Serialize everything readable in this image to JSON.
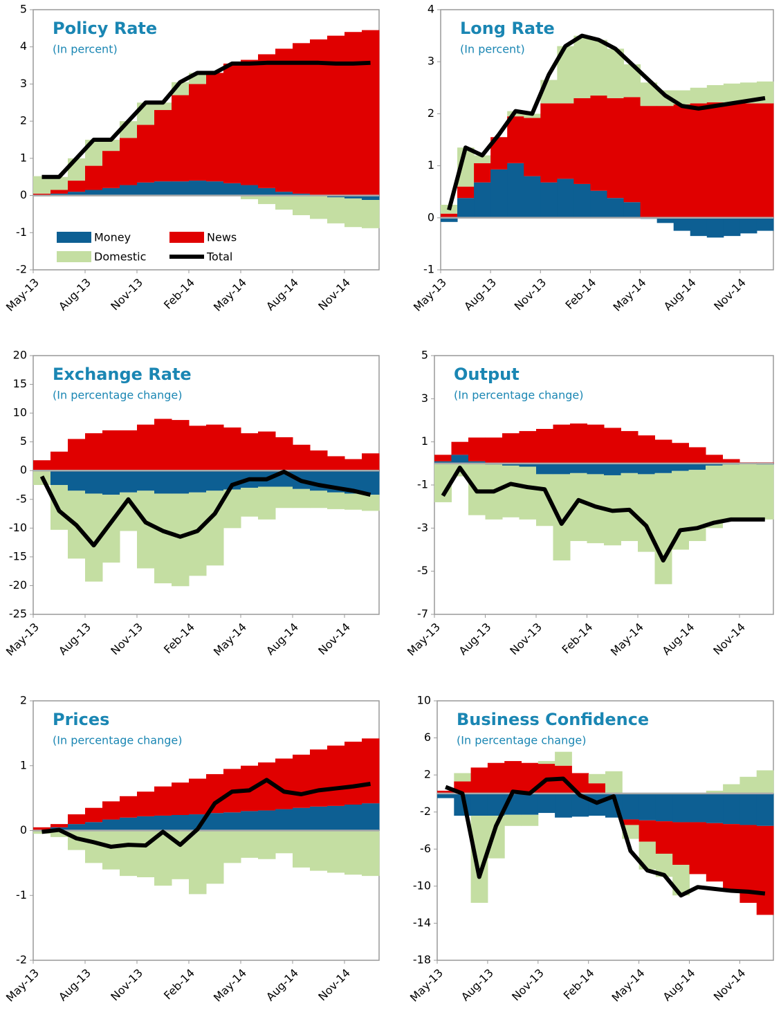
{
  "chart_data": [
    {
      "type": "stacked_bar",
      "title": "Policy Rate",
      "subtitle": "(In percent)",
      "categories": [
        "May-13",
        null,
        null,
        "Aug-13",
        null,
        null,
        "Nov-13",
        null,
        null,
        "Feb-14",
        null,
        null,
        "May-14",
        null,
        null,
        "Aug-14",
        null,
        null,
        "Nov-14",
        null
      ],
      "ylim": [
        -2,
        5
      ],
      "yticks": [
        -2,
        -1,
        0,
        1,
        2,
        3,
        4,
        5
      ],
      "legend": "lower left",
      "series": [
        {
          "name": "Money",
          "color": "#0d5f93",
          "values": [
            -0.02,
            0.05,
            0.1,
            0.15,
            0.2,
            0.28,
            0.35,
            0.38,
            0.38,
            0.4,
            0.38,
            0.33,
            0.28,
            0.2,
            0.1,
            0.05,
            0,
            -0.05,
            -0.08,
            -0.12
          ]
        },
        {
          "name": "News",
          "color": "#e00000",
          "values": [
            0.05,
            0.1,
            0.3,
            0.65,
            1.0,
            1.27,
            1.55,
            1.92,
            2.32,
            2.6,
            2.92,
            3.22,
            3.37,
            3.6,
            3.85,
            4.05,
            4.2,
            4.3,
            4.4,
            4.45
          ]
        },
        {
          "name": "Domestic",
          "color": "#c4dea2",
          "values": [
            0.47,
            0.35,
            0.6,
            0.7,
            0.3,
            0.45,
            0.6,
            0.2,
            0.35,
            0.3,
            0,
            0,
            -0.1,
            -0.23,
            -0.38,
            -0.53,
            -0.63,
            -0.7,
            -0.77,
            -0.76
          ]
        },
        {
          "name": "Total",
          "color": "#000000",
          "type": "line",
          "values": [
            0.5,
            0.5,
            1.0,
            1.5,
            1.5,
            2.0,
            2.5,
            2.5,
            3.05,
            3.3,
            3.3,
            3.55,
            3.55,
            3.57,
            3.57,
            3.57,
            3.57,
            3.55,
            3.55,
            3.57
          ]
        }
      ]
    },
    {
      "type": "stacked_bar",
      "title": "Long Rate",
      "subtitle": "(In percent)",
      "categories": [
        "May-13",
        null,
        null,
        "Aug-13",
        null,
        null,
        "Nov-13",
        null,
        null,
        "Feb-14",
        null,
        null,
        "May-14",
        null,
        null,
        "Aug-14",
        null,
        null,
        "Nov-14",
        null
      ],
      "ylim": [
        -1,
        4
      ],
      "yticks": [
        -1,
        0,
        1,
        2,
        3,
        4
      ],
      "series": [
        {
          "color": "#0d5f93",
          "values": [
            -0.08,
            0.38,
            0.68,
            0.93,
            1.05,
            0.8,
            0.68,
            0.75,
            0.65,
            0.52,
            0.38,
            0.3,
            -0.02,
            -0.1,
            -0.25,
            -0.35,
            -0.38,
            -0.35,
            -0.3,
            -0.25
          ]
        },
        {
          "color": "#e00000",
          "values": [
            0.08,
            0.22,
            0.37,
            0.62,
            0.9,
            1.12,
            1.52,
            1.45,
            1.65,
            1.83,
            1.92,
            2.02,
            2.15,
            2.15,
            2.18,
            2.2,
            2.22,
            2.2,
            2.2,
            2.2
          ]
        },
        {
          "color": "#c4dea2",
          "values": [
            0.17,
            0.75,
            0.15,
            0,
            0.1,
            0.08,
            0.45,
            1.1,
            1.2,
            1.07,
            0.95,
            0.63,
            0.45,
            0.3,
            0.27,
            0.3,
            0.33,
            0.38,
            0.4,
            0.42
          ]
        },
        {
          "color": "#000000",
          "type": "line",
          "values": [
            0.15,
            1.35,
            1.2,
            1.6,
            2.05,
            2.0,
            2.75,
            3.3,
            3.5,
            3.42,
            3.25,
            2.95,
            2.65,
            2.35,
            2.15,
            2.1,
            2.15,
            2.2,
            2.25,
            2.3
          ]
        }
      ]
    },
    {
      "type": "stacked_bar",
      "title": "Exchange Rate",
      "subtitle": "(In percentage change)",
      "categories": [
        "May-13",
        null,
        null,
        "Aug-13",
        null,
        null,
        "Nov-13",
        null,
        null,
        "Feb-14",
        null,
        null,
        "May-14",
        null,
        null,
        "Aug-14",
        null,
        null,
        "Nov-14",
        null
      ],
      "ylim": [
        -25,
        20
      ],
      "yticks": [
        -25,
        -20,
        -15,
        -10,
        -5,
        0,
        5,
        10,
        15,
        20
      ],
      "series": [
        {
          "color": "#0d5f93",
          "values": [
            0,
            -2.5,
            -3.5,
            -4,
            -4.2,
            -3.8,
            -3.5,
            -4,
            -4,
            -3.8,
            -3.5,
            -3.3,
            -3,
            -2.8,
            -2.8,
            -3.2,
            -3.5,
            -3.8,
            -4,
            -4.2
          ]
        },
        {
          "color": "#e00000",
          "values": [
            1.8,
            3.3,
            5.5,
            6.5,
            7,
            7,
            8,
            9,
            8.8,
            7.8,
            8,
            7.5,
            6.5,
            6.8,
            5.8,
            4.5,
            3.5,
            2.5,
            2,
            3
          ]
        },
        {
          "color": "#c4dea2",
          "values": [
            -2.5,
            -7.8,
            -11.8,
            -15.3,
            -11.8,
            -6.7,
            -13.5,
            -15.6,
            -16.1,
            -14.5,
            -13,
            -6.7,
            -5,
            -5.7,
            -3.7,
            -3.3,
            -3,
            -2.9,
            -2.8,
            -2.8
          ]
        },
        {
          "color": "#000000",
          "type": "line",
          "values": [
            -1,
            -7,
            -9.5,
            -13,
            -9,
            -5,
            -9,
            -10.5,
            -11.5,
            -10.5,
            -7.5,
            -2.5,
            -1.5,
            -1.5,
            -0.2,
            -1.8,
            -2.5,
            -3,
            -3.5,
            -4.2
          ]
        }
      ]
    },
    {
      "type": "stacked_bar",
      "title": "Output",
      "subtitle": "(In percentage change)",
      "categories": [
        "May-13",
        null,
        null,
        "Aug-13",
        null,
        null,
        "Nov-13",
        null,
        null,
        "Feb-14",
        null,
        null,
        "May-14",
        null,
        null,
        "Aug-14",
        null,
        null,
        "Nov-14",
        null
      ],
      "ylim": [
        -7,
        5
      ],
      "yticks": [
        -7,
        -5,
        -3,
        -1,
        1,
        3,
        5
      ],
      "series": [
        {
          "color": "#0d5f93",
          "values": [
            0.1,
            0.4,
            0.1,
            -0.05,
            -0.1,
            -0.15,
            -0.5,
            -0.5,
            -0.45,
            -0.5,
            -0.55,
            -0.45,
            -0.5,
            -0.45,
            -0.35,
            -0.3,
            -0.1,
            -0.05,
            0,
            -0.05
          ]
        },
        {
          "color": "#e00000",
          "values": [
            0.3,
            0.6,
            1.1,
            1.2,
            1.4,
            1.5,
            1.6,
            1.8,
            1.85,
            1.8,
            1.65,
            1.5,
            1.3,
            1.1,
            0.95,
            0.75,
            0.4,
            0.2,
            0.05,
            0.05
          ]
        },
        {
          "color": "#c4dea2",
          "values": [
            -1.8,
            -0.6,
            -2.4,
            -2.55,
            -2.4,
            -2.45,
            -2.4,
            -4.0,
            -3.15,
            -3.2,
            -3.25,
            -3.15,
            -3.6,
            -5.15,
            -3.65,
            -3.3,
            -2.9,
            -2.55,
            -2.6,
            -2.55
          ]
        },
        {
          "color": "#000000",
          "type": "line",
          "values": [
            -1.5,
            -0.2,
            -1.3,
            -1.3,
            -0.95,
            -1.1,
            -1.2,
            -2.8,
            -1.7,
            -2.0,
            -2.2,
            -2.15,
            -2.9,
            -4.5,
            -3.1,
            -3.0,
            -2.75,
            -2.6,
            -2.6,
            -2.6
          ]
        }
      ]
    },
    {
      "type": "stacked_bar",
      "title": "Prices",
      "subtitle": "(In percentage change)",
      "categories": [
        "May-13",
        null,
        null,
        "Aug-13",
        null,
        null,
        "Nov-13",
        null,
        null,
        "Feb-14",
        null,
        null,
        "May-14",
        null,
        null,
        "Aug-14",
        null,
        null,
        "Nov-14",
        null
      ],
      "ylim": [
        -2,
        2
      ],
      "yticks": [
        -2,
        -1,
        0,
        1,
        2
      ],
      "series": [
        {
          "color": "#0d5f93",
          "values": [
            0,
            0.05,
            0.1,
            0.13,
            0.17,
            0.2,
            0.22,
            0.23,
            0.24,
            0.25,
            0.27,
            0.28,
            0.3,
            0.31,
            0.33,
            0.35,
            0.37,
            0.38,
            0.4,
            0.42
          ]
        },
        {
          "color": "#e00000",
          "values": [
            0.05,
            0.05,
            0.15,
            0.22,
            0.28,
            0.33,
            0.38,
            0.45,
            0.5,
            0.55,
            0.6,
            0.67,
            0.7,
            0.74,
            0.78,
            0.82,
            0.88,
            0.93,
            0.97,
            1.0
          ]
        },
        {
          "color": "#c4dea2",
          "values": [
            -0.05,
            -0.1,
            -0.3,
            -0.5,
            -0.6,
            -0.7,
            -0.72,
            -0.85,
            -0.75,
            -0.98,
            -0.82,
            -0.5,
            -0.42,
            -0.44,
            -0.35,
            -0.57,
            -0.62,
            -0.65,
            -0.68,
            -0.7
          ]
        },
        {
          "color": "#000000",
          "type": "line",
          "values": [
            -0.02,
            0.01,
            -0.12,
            -0.18,
            -0.25,
            -0.22,
            -0.23,
            -0.02,
            -0.22,
            0.02,
            0.42,
            0.6,
            0.62,
            0.78,
            0.6,
            0.56,
            0.62,
            0.65,
            0.68,
            0.72
          ]
        }
      ]
    },
    {
      "type": "stacked_bar",
      "title": "Business Confidence",
      "subtitle": "(In percentage change)",
      "categories": [
        "May-13",
        null,
        null,
        "Aug-13",
        null,
        null,
        "Nov-13",
        null,
        null,
        "Feb-14",
        null,
        null,
        "May-14",
        null,
        null,
        "Aug-14",
        null,
        null,
        "Nov-14",
        null
      ],
      "ylim": [
        -18,
        10
      ],
      "yticks": [
        -18,
        -14,
        -10,
        -6,
        -2,
        2,
        6,
        10
      ],
      "series": [
        {
          "color": "#0d5f93",
          "values": [
            -0.5,
            -2.4,
            -2.4,
            -2.4,
            -2.3,
            -2.3,
            -2.1,
            -2.6,
            -2.5,
            -2.4,
            -2.6,
            -2.8,
            -2.9,
            -3.0,
            -3.1,
            -3.1,
            -3.2,
            -3.3,
            -3.4,
            -3.5
          ]
        },
        {
          "color": "#e00000",
          "values": [
            0.3,
            1.3,
            2.8,
            3.3,
            3.5,
            3.3,
            3.2,
            3.0,
            2.2,
            1.1,
            0,
            -0.6,
            -2.3,
            -3.5,
            -4.6,
            -5.6,
            -6.3,
            -7.3,
            -8.4,
            -9.6
          ]
        },
        {
          "color": "#c4dea2",
          "values": [
            0,
            0.9,
            -9.4,
            -4.6,
            -1.2,
            -1.2,
            0.3,
            1.5,
            0,
            1.0,
            2.4,
            -1.5,
            -3,
            -2.5,
            -3.3,
            0,
            0.3,
            1.0,
            1.8,
            2.5
          ]
        },
        {
          "color": "#000000",
          "type": "line",
          "values": [
            0.7,
            0,
            -9,
            -3.5,
            0.2,
            0,
            1.5,
            1.6,
            -0.2,
            -1.0,
            -0.3,
            -6.2,
            -8.3,
            -8.8,
            -11,
            -10.1,
            -10.3,
            -10.5,
            -10.6,
            -10.8
          ]
        }
      ]
    }
  ]
}
